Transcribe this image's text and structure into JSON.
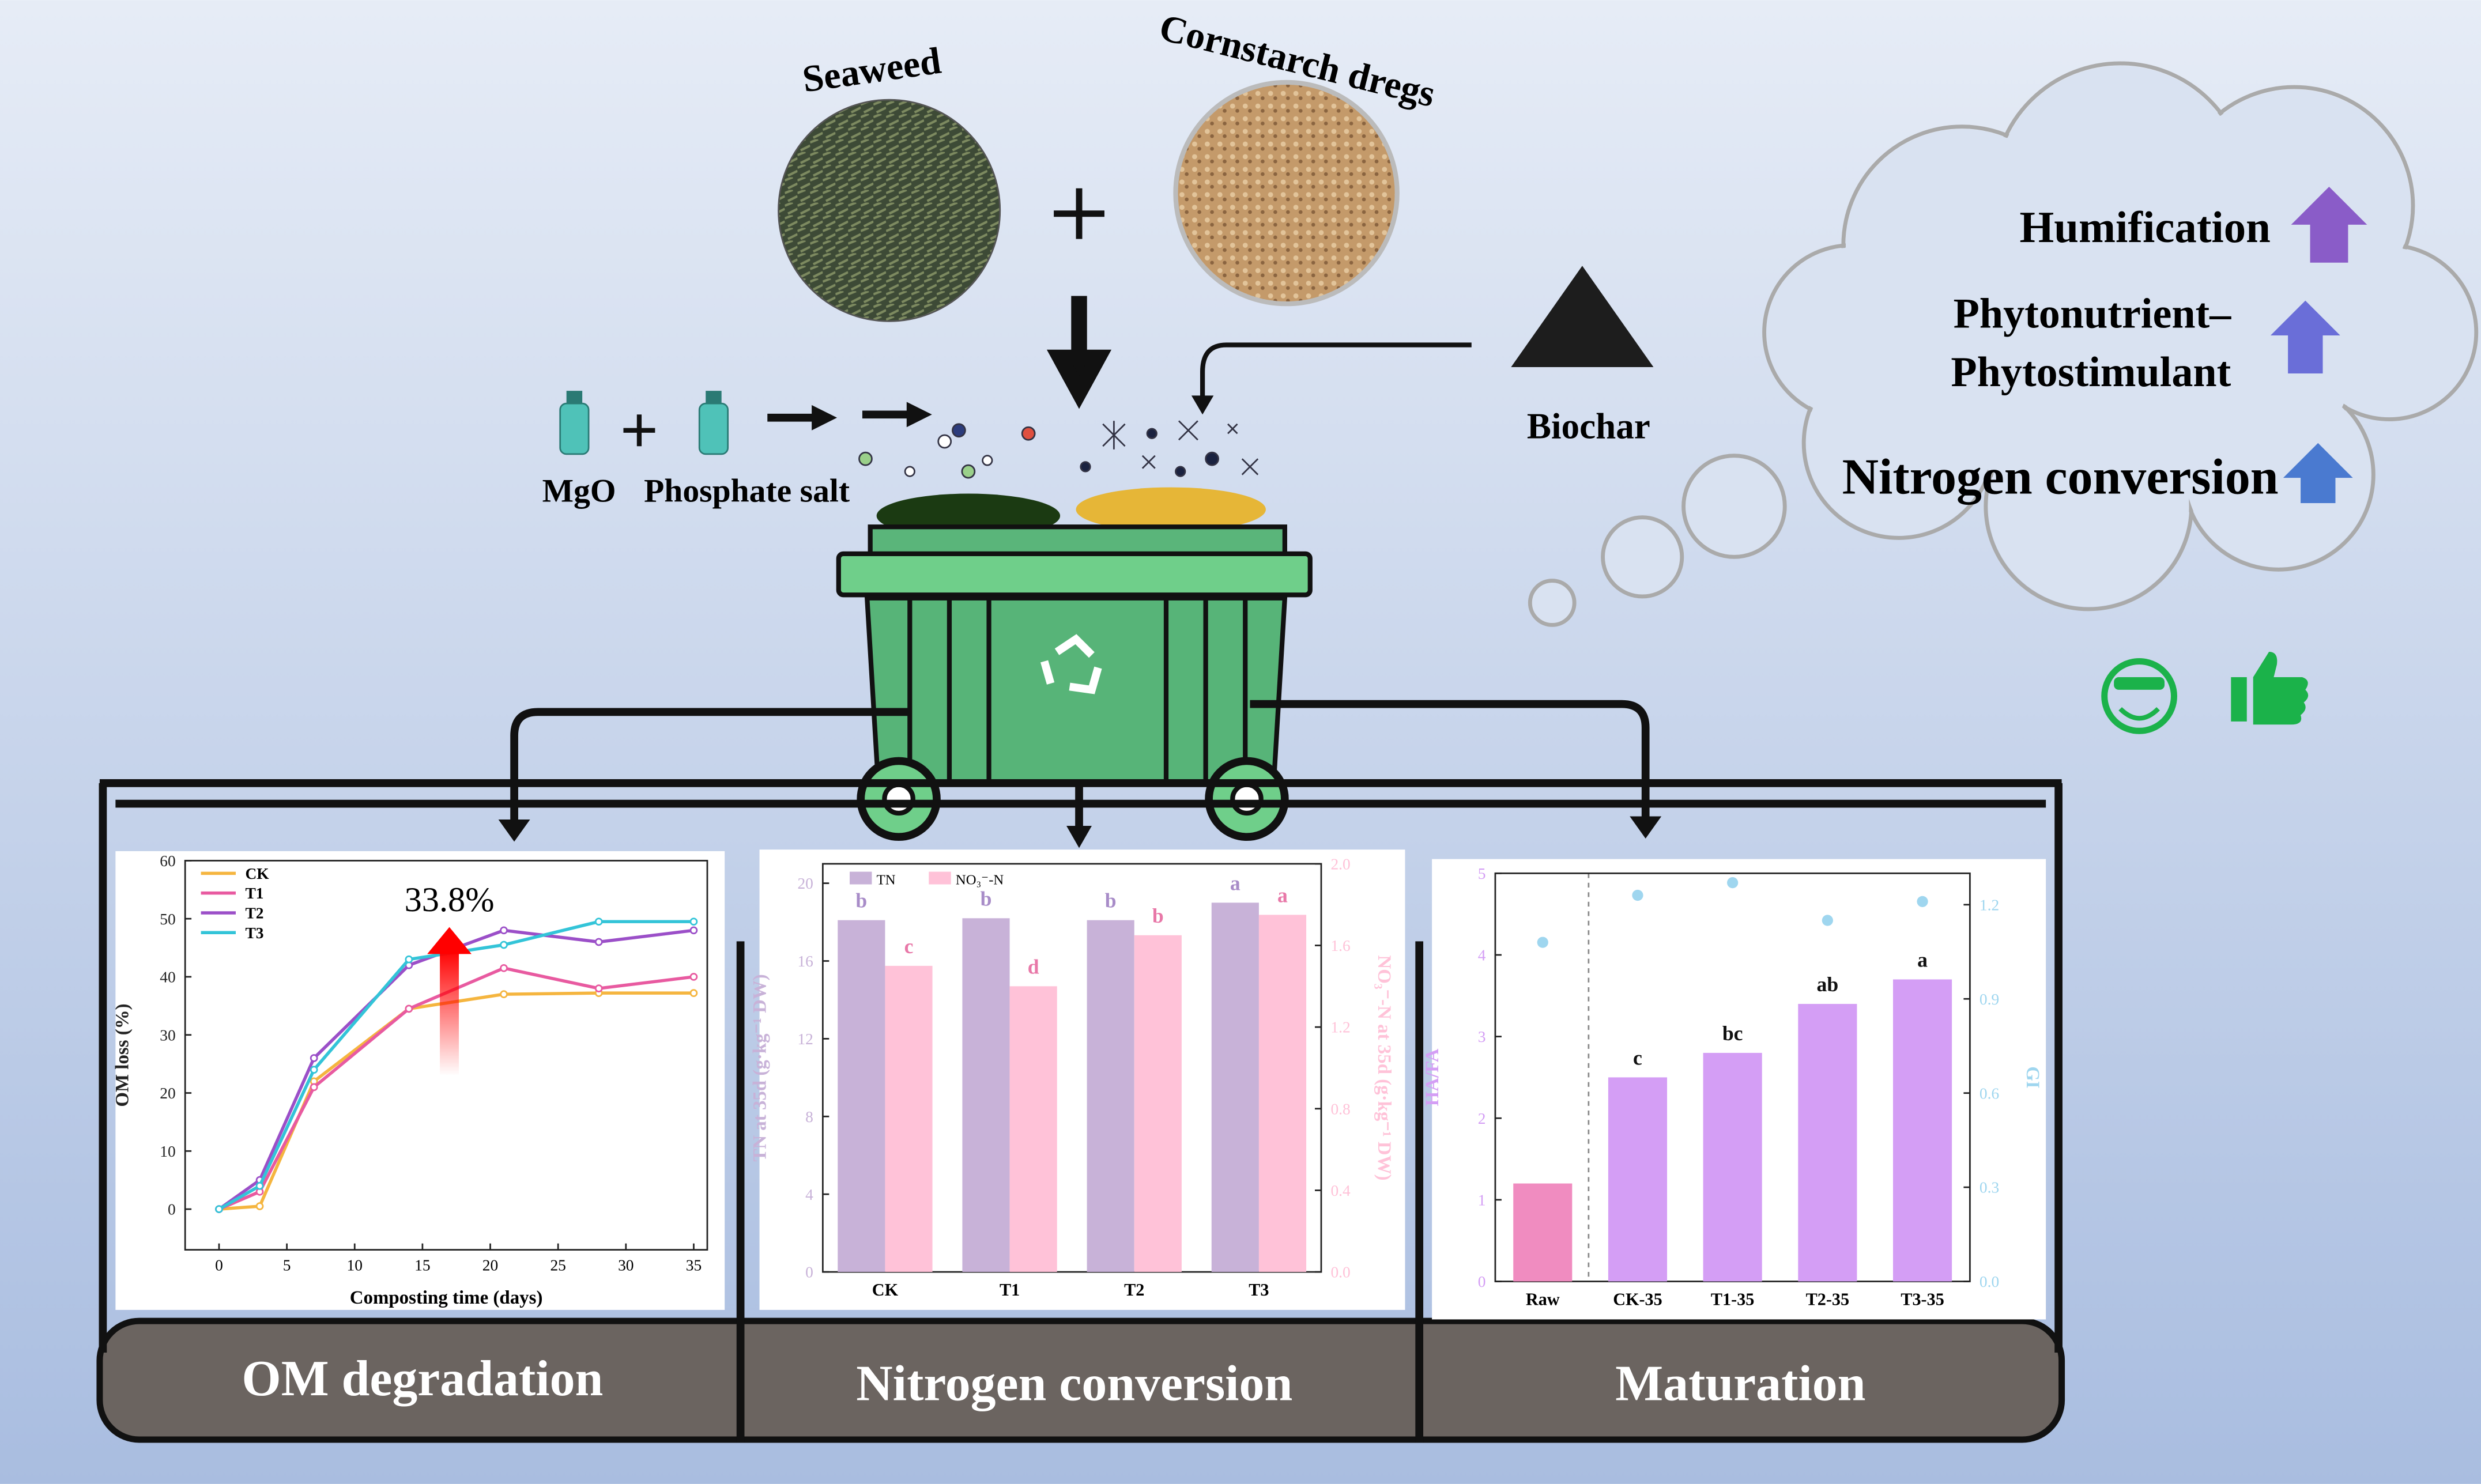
{
  "ingredients": {
    "seaweed": "Seaweed",
    "cornstarch": "Cornstarch dregs",
    "biochar": "Biochar",
    "mgo": "MgO",
    "phosphate": "Phosphate salt"
  },
  "benefits": [
    "Humification",
    "Phytonutrient–",
    "Phytostimulant",
    "Nitrogen conversion"
  ],
  "panels": [
    "OM degradation",
    "Nitrogen conversion",
    "Maturation"
  ],
  "chart_data": [
    {
      "type": "line",
      "x": [
        0,
        3,
        7,
        14,
        21,
        28,
        35
      ],
      "series": [
        {
          "name": "CK",
          "color": "#f5b53f",
          "values": [
            0,
            0.5,
            22,
            34.5,
            37,
            37.2,
            37.2
          ]
        },
        {
          "name": "T1",
          "color": "#e85aa0",
          "values": [
            0,
            3,
            21,
            34.5,
            41.5,
            38,
            40
          ]
        },
        {
          "name": "T2",
          "color": "#9b4fc8",
          "values": [
            0,
            5,
            26,
            42,
            48,
            46,
            48
          ]
        },
        {
          "name": "T3",
          "color": "#33c4d8",
          "values": [
            0,
            4,
            24,
            43,
            45.5,
            49.5,
            49.5
          ]
        }
      ],
      "xlim": [
        -2.5,
        36
      ],
      "xticks": [
        0,
        5,
        10,
        15,
        20,
        25,
        30,
        35
      ],
      "ylim": [
        -7,
        60
      ],
      "yticks": [
        0,
        10,
        20,
        30,
        40,
        50,
        60
      ],
      "xlabel": "Composting time (days)",
      "ylabel": "OM loss (%)",
      "annotation": "33.8%",
      "legend": "upper left"
    },
    {
      "type": "bar",
      "categories": [
        "CK",
        "T1",
        "T2",
        "T3"
      ],
      "series": [
        {
          "name": "TN",
          "color": "#c8b2d8",
          "values": [
            18.1,
            18.2,
            18.1,
            19.0
          ],
          "letters": [
            "b",
            "b",
            "b",
            "a"
          ]
        },
        {
          "name": "NO₃⁻-N",
          "color": "#ffc2d8",
          "axis": "y2",
          "values": [
            1.5,
            1.4,
            1.65,
            1.75
          ],
          "letters": [
            "c",
            "d",
            "b",
            "a"
          ]
        }
      ],
      "ylim": [
        0,
        21
      ],
      "yticks": [
        0,
        4,
        8,
        12,
        16,
        20
      ],
      "y2lim": [
        0,
        2.0
      ],
      "y2ticks": [
        {
          "value": 0,
          "label": "0.0"
        },
        0.4,
        0.8,
        1.2,
        1.6,
        {
          "value": 2,
          "label": "2.0"
        }
      ],
      "ylabel": "TN at 35d (g·kg⁻¹ DW)",
      "y2label": "NO₃⁻-N at 35d (g·kg⁻¹ DW)",
      "legend": "upper left"
    },
    {
      "type": "bar",
      "categories": [
        "Raw",
        "CK-35",
        "T1-35",
        "T2-35",
        "T3-35"
      ],
      "series": [
        {
          "name": "HA/FA",
          "colors": [
            "#f08cc0",
            "#d49ef5",
            "#d49ef5",
            "#d49ef5",
            "#d49ef5"
          ],
          "values": [
            1.2,
            2.5,
            2.8,
            3.4,
            3.7
          ],
          "letters": [
            null,
            "c",
            "bc",
            "ab",
            "a"
          ]
        },
        {
          "name": "GI",
          "type": "scatter",
          "color": "#9fd6ef",
          "axis": "y2",
          "values": [
            1.08,
            1.23,
            1.27,
            1.15,
            1.21
          ]
        }
      ],
      "ylim": [
        0,
        5
      ],
      "yticks": [
        0,
        1,
        2,
        3,
        4,
        5
      ],
      "y2lim": [
        0,
        1.3
      ],
      "y2ticks": [
        {
          "value": 0,
          "label": "0.0"
        },
        0.3,
        0.6,
        0.9,
        1.2
      ],
      "ylabel": "HA/FA",
      "y2label": "GI",
      "legend": false
    }
  ]
}
